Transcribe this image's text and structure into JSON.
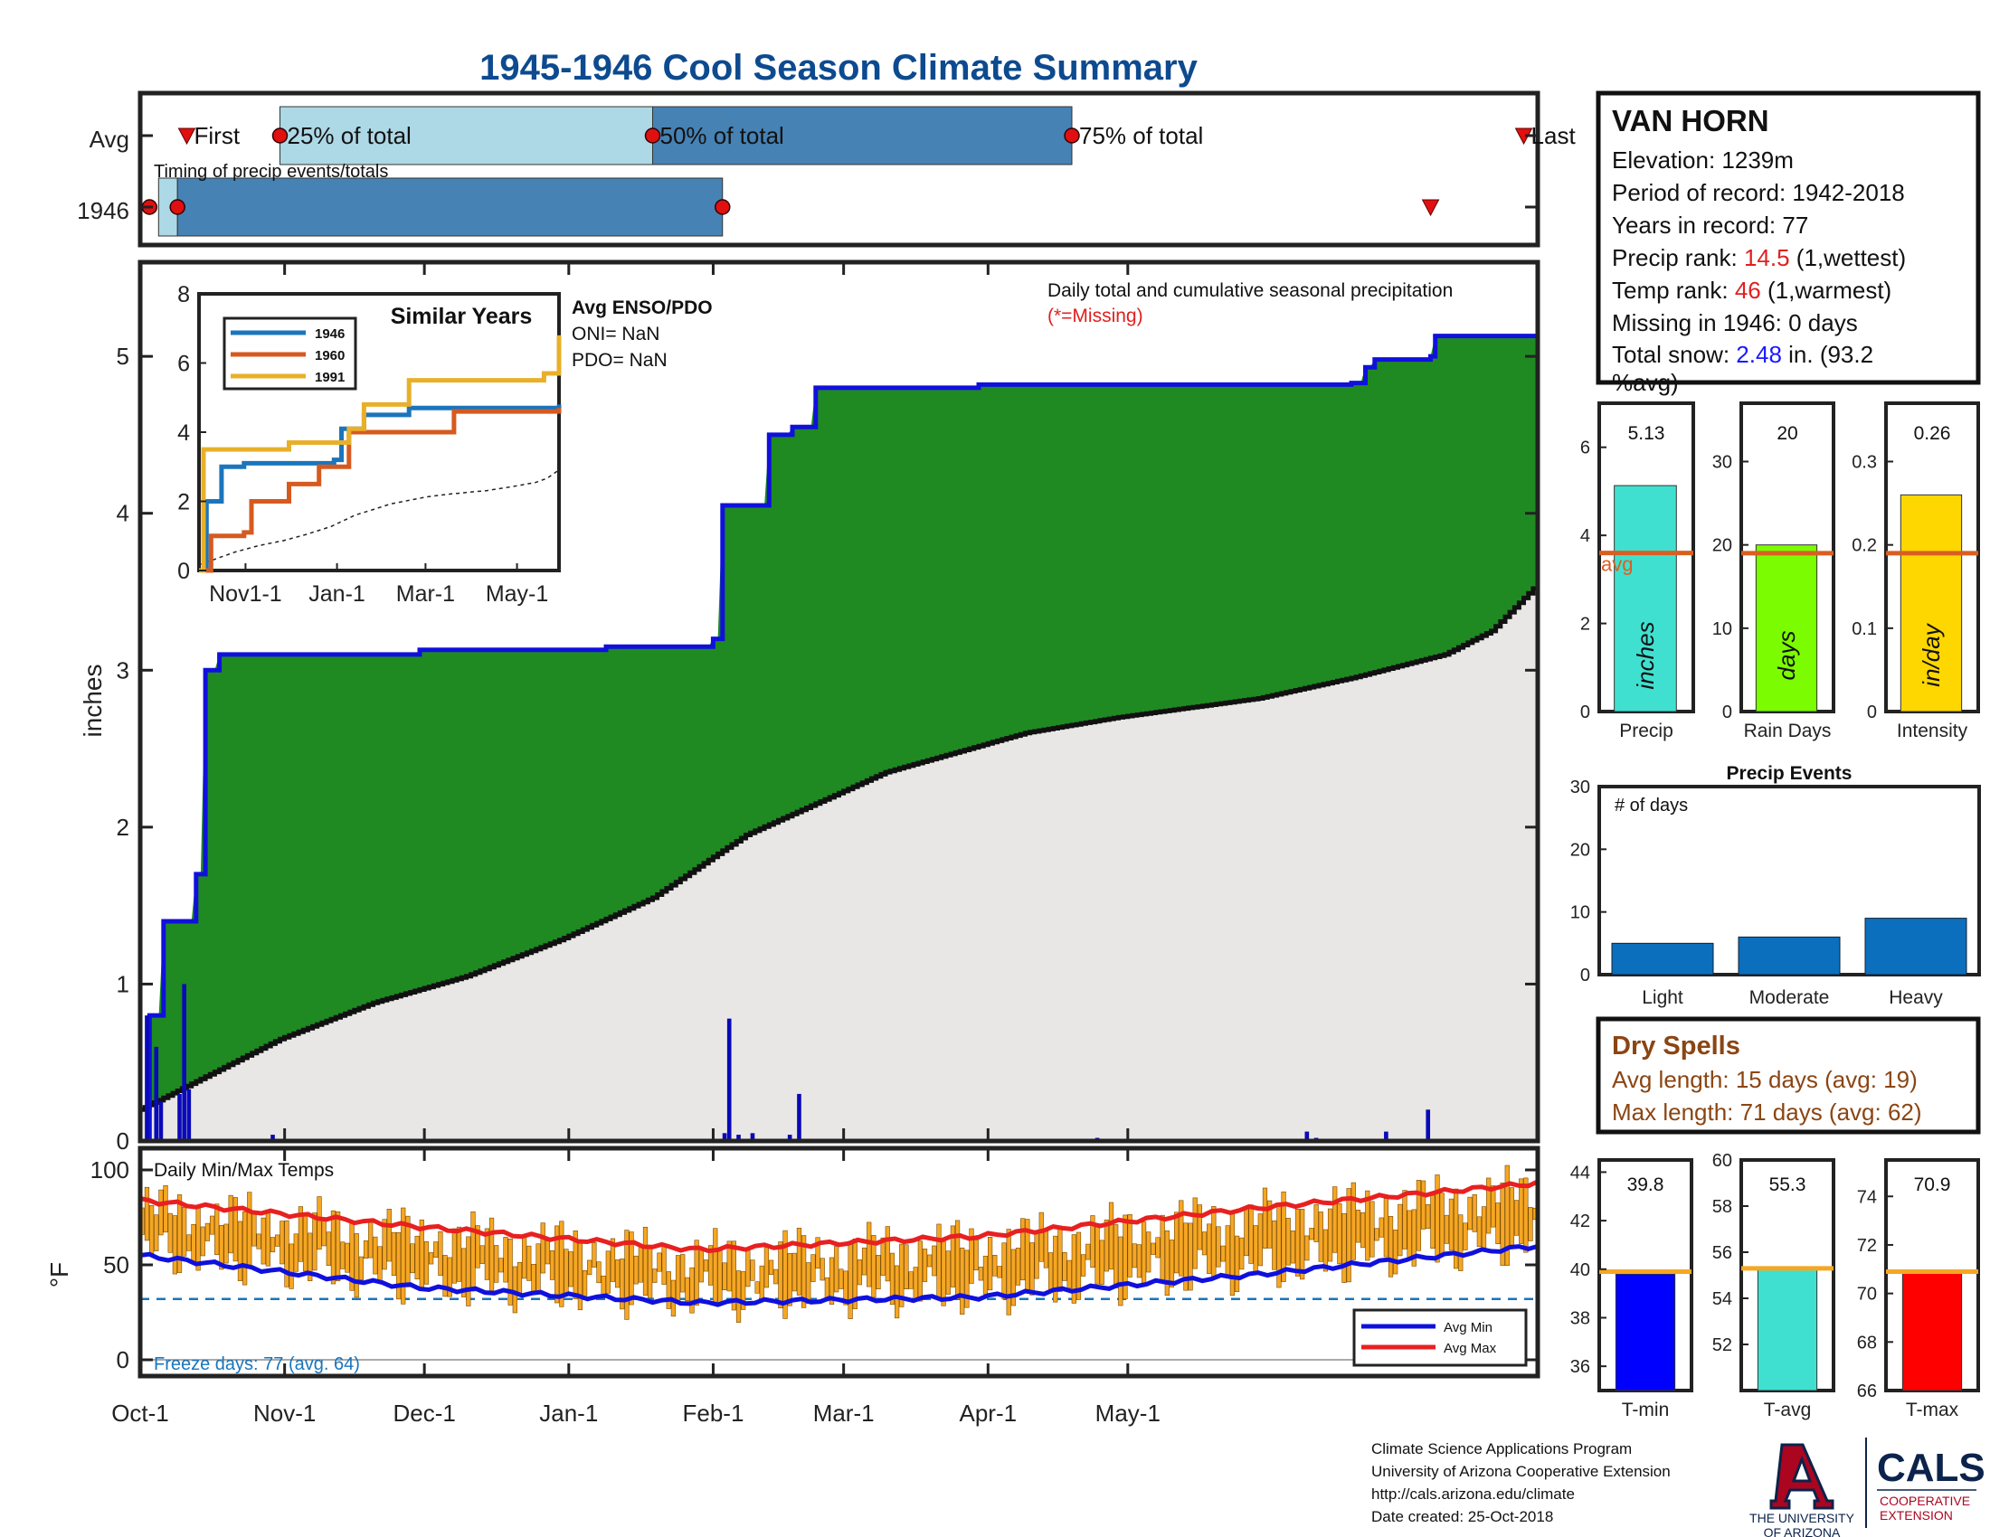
{
  "title": "1945-1946 Cool Season Climate Summary",
  "colors": {
    "title": "#0d4a8f",
    "green": "#1f8a22",
    "cum_gray": "#e8e7e6",
    "blue_line": "#1010dd",
    "bar_orange": "#f5a623",
    "timing_light": "#add8e6",
    "timing_dark": "#4682b4",
    "event_bar": "#0c6fbd",
    "avg_line_orange": "#d95f20",
    "dry_brown": "#8b4513"
  },
  "timing": {
    "legend": "Timing of precip events/totals",
    "rows": [
      {
        "label": "Avg",
        "first": "First",
        "q25": "25% of total",
        "q50": "50% of total",
        "q75": "75% of total",
        "last": "Last"
      },
      {
        "label": "1946"
      }
    ],
    "avg_day_index": {
      "first": 10,
      "q25": 30,
      "q50": 110,
      "q75": 200,
      "last": 297
    },
    "year_day_index": {
      "first": 2,
      "q25": 8,
      "q50": 125,
      "last": 277
    }
  },
  "station": {
    "name": "VAN HORN",
    "elevation": "Elevation: 1239m",
    "period": "Period of record: 1942-2018",
    "years": "Years in record: 77",
    "precip_rank_label": "Precip rank: ",
    "precip_rank_value": "14.5",
    "precip_rank_suffix": " (1,wettest)",
    "temp_rank_label": "Temp rank: ",
    "temp_rank_value": "46",
    "temp_rank_suffix": " (1,warmest)",
    "missing": "Missing in 1946: 0 days",
    "snow_label": "Total snow: ",
    "snow_value": "2.48",
    "snow_suffix": " in. (93.2",
    "snow_line2": "%avg)"
  },
  "main_chart": {
    "annotation": "Daily total and cumulative seasonal precipitation",
    "missing_note": "(*=Missing)",
    "ylabel": "inches",
    "ylim": [
      0,
      5.6
    ],
    "yticks": [
      "0",
      "1",
      "2",
      "3",
      "4",
      "5"
    ]
  },
  "inset": {
    "title": "Similar Years",
    "legend": [
      "1946",
      "1960",
      "1991"
    ],
    "xticks": [
      "Nov1-1",
      "Jan-1",
      "Mar-1",
      "May-1"
    ],
    "yticks": [
      "0",
      "2",
      "4",
      "6",
      "8"
    ],
    "ylim": [
      0,
      8
    ]
  },
  "enso": {
    "title": "Avg ENSO/PDO",
    "oni": "ONI= NaN",
    "pdo": "PDO= NaN"
  },
  "temp_chart": {
    "annotation": "Daily Min/Max Temps",
    "ylabel": "°F",
    "yticks": [
      "0",
      "50",
      "100"
    ],
    "ylim": [
      0,
      100
    ],
    "freeze": "Freeze days: 77 (avg. 64)",
    "legend_min": "Avg Min",
    "legend_max": "Avg Max",
    "xticks": [
      "Oct-1",
      "Nov-1",
      "Dec-1",
      "Jan-1",
      "Feb-1",
      "Mar-1",
      "Apr-1",
      "May-1"
    ]
  },
  "summary_bars": [
    {
      "label": "Precip",
      "value_label": "5.13",
      "unit": "inches",
      "value": 5.13,
      "avg": 3.6,
      "ylim": [
        0,
        7
      ],
      "ticks": [
        "0",
        "2",
        "4",
        "6"
      ],
      "tick_values": [
        0,
        2,
        4,
        6
      ],
      "color": "#40e0d0",
      "avg_text": "avg"
    },
    {
      "label": "Rain Days",
      "value_label": "20",
      "unit": "days",
      "value": 20,
      "avg": 19,
      "ylim": [
        0,
        37
      ],
      "ticks": [
        "0",
        "10",
        "20",
        "30"
      ],
      "tick_values": [
        0,
        10,
        20,
        30
      ],
      "color": "#7cfc00"
    },
    {
      "label": "Intensity",
      "value_label": "0.26",
      "unit": "in/day",
      "value": 0.26,
      "avg": 0.19,
      "ylim": [
        0,
        0.37
      ],
      "ticks": [
        "0",
        "0.1",
        "0.2",
        "0.3"
      ],
      "tick_values": [
        0,
        0.1,
        0.2,
        0.3
      ],
      "color": "#ffd700"
    }
  ],
  "events": {
    "title": "Precip Events",
    "annotation": "# of days",
    "categories": [
      "Light",
      "Moderate",
      "Heavy"
    ],
    "values": [
      5,
      6,
      9
    ],
    "ylim": [
      0,
      30
    ],
    "yticks": [
      "0",
      "10",
      "20",
      "30"
    ]
  },
  "dry_spells": {
    "title": "Dry Spells",
    "avg": "Avg length: 15 days (avg: 19)",
    "max": "Max length: 71 days (avg: 62)"
  },
  "temp_bars": [
    {
      "label": "T-min",
      "value_label": "39.8",
      "value": 39.8,
      "avg": 39.9,
      "ylim": [
        35,
        44.5
      ],
      "ticks": [
        "36",
        "38",
        "40",
        "42",
        "44"
      ],
      "tick_values": [
        36,
        38,
        40,
        42,
        44
      ],
      "color": "#0000ff"
    },
    {
      "label": "T-avg",
      "value_label": "55.3",
      "value": 55.3,
      "avg": 55.3,
      "ylim": [
        50,
        60
      ],
      "ticks": [
        "52",
        "54",
        "56",
        "58",
        "60"
      ],
      "tick_values": [
        52,
        54,
        56,
        58,
        60
      ],
      "color": "#40e0d0"
    },
    {
      "label": "T-max",
      "value_label": "70.9",
      "value": 70.9,
      "avg": 70.9,
      "ylim": [
        66,
        75.5
      ],
      "ticks": [
        "66",
        "68",
        "70",
        "72",
        "74"
      ],
      "tick_values": [
        66,
        68,
        70,
        72,
        74
      ],
      "color": "#ff0000"
    }
  ],
  "footer": {
    "line1": "Climate Science Applications Program",
    "line2": "University of Arizona Cooperative Extension",
    "line3": "http://cals.arizona.edu/climate",
    "line4": " Date created: 25-Oct-2018"
  },
  "logos": {
    "ua_line1": "THE UNIVERSITY",
    "ua_line2": "OF ARIZONA",
    "cals": "CALS",
    "coop1": "COOPERATIVE",
    "coop2": "EXTENSION"
  },
  "chart_data": [
    {
      "type": "area",
      "title": "Daily total and cumulative seasonal precipitation",
      "ylabel": "inches",
      "ylim": [
        0,
        5.6
      ],
      "x_start": "Oct-1",
      "x_end": "May-31",
      "series": [
        {
          "name": "cumulative",
          "points": [
            [
              0,
              0
            ],
            [
              2,
              0.8
            ],
            [
              5,
              1.4
            ],
            [
              10,
              1.4
            ],
            [
              12,
              1.7
            ],
            [
              14,
              3.0
            ],
            [
              17,
              3.1
            ],
            [
              35,
              3.1
            ],
            [
              60,
              3.13
            ],
            [
              100,
              3.15
            ],
            [
              120,
              3.15
            ],
            [
              123,
              3.2
            ],
            [
              125,
              4.05
            ],
            [
              130,
              4.05
            ],
            [
              135,
              4.5
            ],
            [
              140,
              4.55
            ],
            [
              145,
              4.8
            ],
            [
              178,
              4.8
            ],
            [
              180,
              4.82
            ],
            [
              260,
              4.83
            ],
            [
              263,
              4.93
            ],
            [
              265,
              4.98
            ],
            [
              277,
              5.0
            ],
            [
              278,
              5.13
            ],
            [
              300,
              5.13
            ]
          ]
        },
        {
          "name": "average",
          "points": [
            [
              0,
              0.2
            ],
            [
              10,
              0.35
            ],
            [
              30,
              0.65
            ],
            [
              50,
              0.88
            ],
            [
              70,
              1.05
            ],
            [
              90,
              1.28
            ],
            [
              110,
              1.55
            ],
            [
              130,
              1.95
            ],
            [
              160,
              2.35
            ],
            [
              190,
              2.6
            ],
            [
              210,
              2.7
            ],
            [
              240,
              2.82
            ],
            [
              260,
              2.95
            ],
            [
              280,
              3.1
            ],
            [
              290,
              3.25
            ],
            [
              300,
              3.55
            ]
          ]
        },
        {
          "name": "daily",
          "bars": [
            [
              1,
              0.8
            ],
            [
              3,
              0.6
            ],
            [
              4,
              0.25
            ],
            [
              8,
              0.3
            ],
            [
              9,
              1.0
            ],
            [
              10,
              0.33
            ],
            [
              28,
              0.04
            ],
            [
              125,
              0.05
            ],
            [
              126,
              0.78
            ],
            [
              128,
              0.04
            ],
            [
              131,
              0.05
            ],
            [
              139,
              0.04
            ],
            [
              141,
              0.3
            ],
            [
              205,
              0.02
            ],
            [
              250,
              0.06
            ],
            [
              252,
              0.02
            ],
            [
              267,
              0.06
            ],
            [
              276,
              0.2
            ]
          ]
        }
      ]
    },
    {
      "type": "line",
      "title": "Similar Years",
      "x": [
        "Nov1-1",
        "Jan-1",
        "Mar-1",
        "May-1"
      ],
      "ylim": [
        0,
        8
      ],
      "series": [
        {
          "name": "1946",
          "points": [
            [
              0,
              0
            ],
            [
              5,
              2
            ],
            [
              15,
              3
            ],
            [
              30,
              3.1
            ],
            [
              90,
              3.2
            ],
            [
              95,
              4.1
            ],
            [
              110,
              4.5
            ],
            [
              140,
              4.7
            ],
            [
              240,
              4.8
            ]
          ]
        },
        {
          "name": "1960",
          "points": [
            [
              0,
              0
            ],
            [
              8,
              1
            ],
            [
              30,
              1.1
            ],
            [
              35,
              2.0
            ],
            [
              60,
              2.5
            ],
            [
              80,
              3.0
            ],
            [
              100,
              4.0
            ],
            [
              170,
              4.6
            ],
            [
              240,
              4.7
            ]
          ]
        },
        {
          "name": "1991",
          "points": [
            [
              0,
              0
            ],
            [
              3,
              3.5
            ],
            [
              60,
              3.7
            ],
            [
              100,
              4.1
            ],
            [
              110,
              4.8
            ],
            [
              140,
              5.5
            ],
            [
              230,
              5.7
            ],
            [
              240,
              6.8
            ]
          ]
        }
      ]
    },
    {
      "type": "bar",
      "title": "Daily Min/Max Temps",
      "ylabel": "°F",
      "ylim": [
        0,
        100
      ],
      "series": [
        {
          "name": "Avg Min",
          "points": [
            [
              0,
              55
            ],
            [
              60,
              38
            ],
            [
              120,
              30
            ],
            [
              180,
              33
            ],
            [
              240,
              45
            ],
            [
              300,
              60
            ]
          ]
        },
        {
          "name": "Avg Max",
          "points": [
            [
              0,
              84
            ],
            [
              60,
              70
            ],
            [
              120,
              58
            ],
            [
              180,
              65
            ],
            [
              240,
              80
            ],
            [
              300,
              93
            ]
          ]
        }
      ]
    },
    {
      "type": "bar",
      "title": "Precip Events",
      "categories": [
        "Light",
        "Moderate",
        "Heavy"
      ],
      "values": [
        5,
        6,
        9
      ],
      "ylim": [
        0,
        30
      ]
    }
  ]
}
